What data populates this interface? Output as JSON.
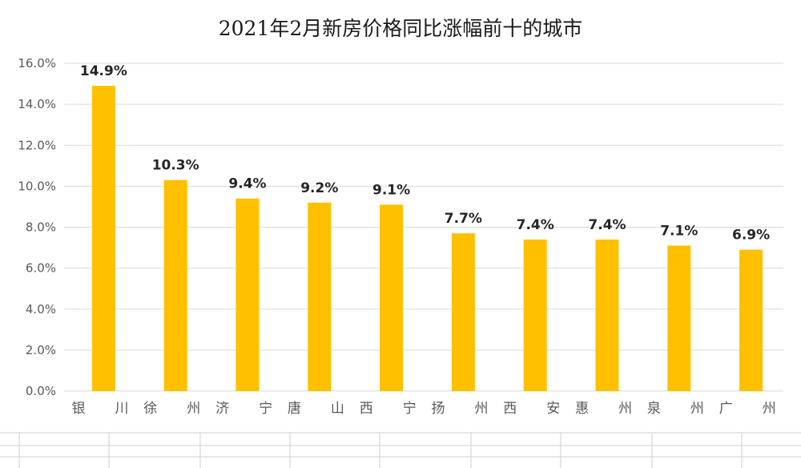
{
  "chart_data": {
    "type": "bar",
    "title": "2021年2月新房价格同比涨幅前十的城市",
    "xlabel": "",
    "ylabel": "",
    "ylim": [
      0,
      16
    ],
    "yticks": [
      "0.0%",
      "2.0%",
      "4.0%",
      "6.0%",
      "8.0%",
      "10.0%",
      "12.0%",
      "14.0%",
      "16.0%"
    ],
    "grid": true,
    "legend": "none",
    "bar_color": "#FFC000",
    "categories_left": [
      "银",
      "徐",
      "济",
      "唐",
      "西",
      "扬",
      "西",
      "惠",
      "泉",
      "广"
    ],
    "categories_right": [
      "川",
      "州",
      "宁",
      "山",
      "宁",
      "州",
      "安",
      "州",
      "州",
      "州"
    ],
    "values": [
      14.9,
      10.3,
      9.4,
      9.2,
      9.1,
      7.7,
      7.4,
      7.4,
      7.1,
      6.9
    ],
    "data_labels": [
      "14.9%",
      "10.3%",
      "9.4%",
      "9.2%",
      "9.1%",
      "7.7%",
      "7.4%",
      "7.4%",
      "7.1%",
      "6.9%"
    ]
  }
}
